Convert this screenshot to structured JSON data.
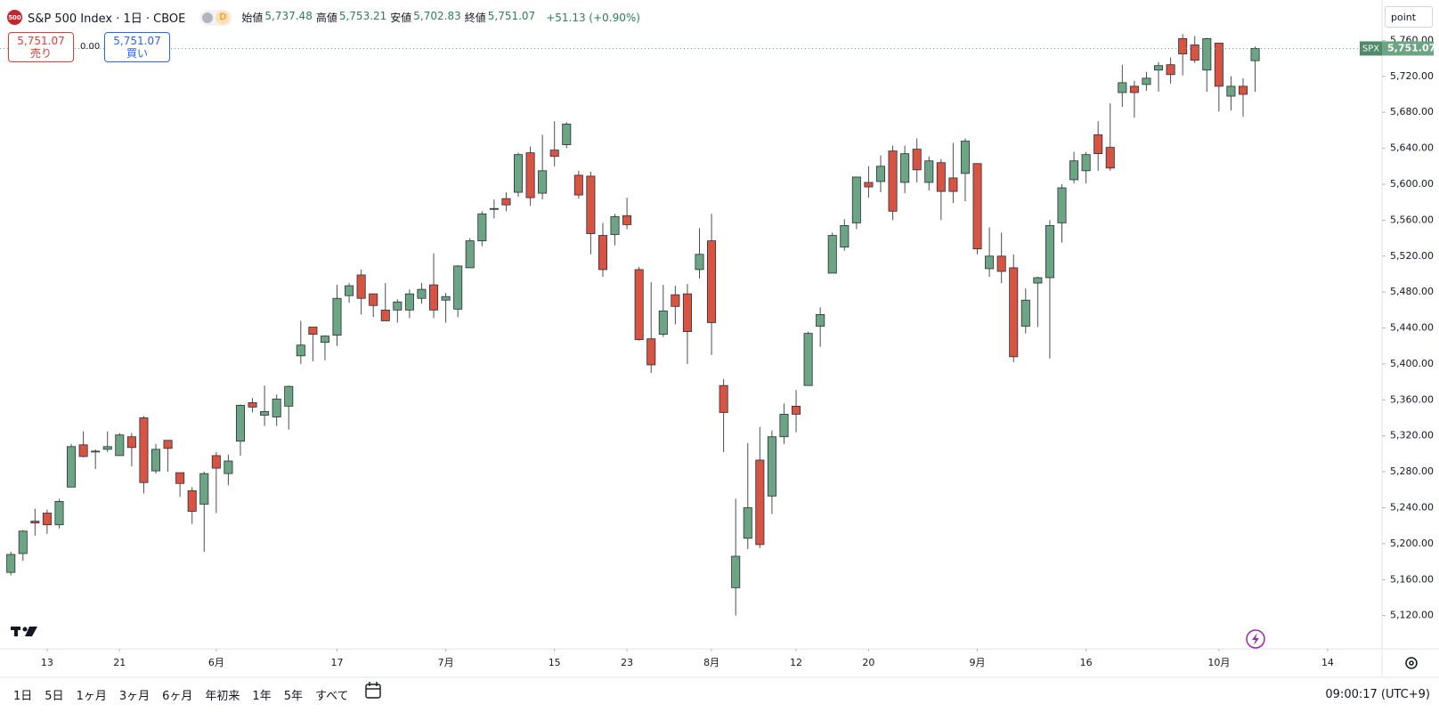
{
  "header": {
    "badge": "500",
    "title": "S&P 500 Index · 1日 · CBOE",
    "interval_badge": "D",
    "ohlc": [
      {
        "label": "始値",
        "value": "5,737.48"
      },
      {
        "label": "高値",
        "value": "5,753.21"
      },
      {
        "label": "安値",
        "value": "5,702.83"
      },
      {
        "label": "終値",
        "value": "5,751.07"
      }
    ],
    "change": "+51.13 (+0.90%)"
  },
  "trade": {
    "sell_price": "5,751.07",
    "sell_label": "売り",
    "spread": "0.00",
    "buy_price": "5,751.07",
    "buy_label": "買い"
  },
  "unit_button": "point",
  "price_tag": {
    "symbol": "SPX",
    "price": "5,751.07"
  },
  "toolbar": {
    "ranges": [
      "1日",
      "5日",
      "1ヶ月",
      "3ヶ月",
      "6ヶ月",
      "年初来",
      "1年",
      "5年",
      "すべて"
    ],
    "time": "09:00:17 (UTC+9)"
  },
  "chart_data": {
    "type": "candlestick",
    "open": [
      5168,
      5189,
      5225,
      5234,
      5221,
      5263,
      5310,
      5303,
      5305,
      5298,
      5319,
      5340,
      5281,
      5315,
      5279,
      5259,
      5244,
      5298,
      5278,
      5314,
      5357,
      5343,
      5341,
      5353,
      5409,
      5441,
      5424,
      5432,
      5476,
      5499,
      5478,
      5460,
      5460,
      5460,
      5473,
      5488,
      5471,
      5461,
      5507,
      5537,
      5572,
      5584,
      5591,
      5635,
      5590,
      5638,
      5644,
      5610,
      5609,
      5543,
      5544,
      5565,
      5505,
      5428,
      5433,
      5477,
      5478,
      5505,
      5537,
      5376,
      5151,
      5206,
      5293,
      5253,
      5319,
      5353,
      5376,
      5442,
      5501,
      5530,
      5557,
      5602,
      5603,
      5637,
      5602,
      5639,
      5602,
      5624,
      5607,
      5612,
      5623,
      5506,
      5520,
      5507,
      5442,
      5490,
      5496,
      5557,
      5605,
      5615,
      5655,
      5641,
      5702,
      5709,
      5711,
      5727,
      5733,
      5762,
      5755,
      5727,
      5757,
      5698,
      5709,
      5737.48
    ],
    "high": [
      5191,
      5215,
      5239,
      5238,
      5250,
      5311,
      5325,
      5305,
      5325,
      5323,
      5323,
      5342,
      5311,
      5315,
      5279,
      5263,
      5280,
      5302,
      5299,
      5355,
      5362,
      5376,
      5366,
      5376,
      5448,
      5441,
      5432,
      5488,
      5490,
      5505,
      5478,
      5490,
      5472,
      5483,
      5490,
      5523,
      5479,
      5510,
      5540,
      5570,
      5583,
      5591,
      5635,
      5642,
      5655,
      5670,
      5669,
      5615,
      5614,
      5557,
      5567,
      5585,
      5508,
      5491,
      5488,
      5487,
      5489,
      5551,
      5567,
      5383,
      5250,
      5312,
      5330,
      5326,
      5356,
      5371,
      5436,
      5463,
      5546,
      5561,
      5608,
      5620,
      5632,
      5643,
      5643,
      5651,
      5631,
      5628,
      5646,
      5651,
      5623,
      5552,
      5546,
      5522,
      5484,
      5497,
      5560,
      5600,
      5636,
      5636,
      5670,
      5690,
      5733,
      5715,
      5725,
      5736,
      5741,
      5767,
      5765,
      5763,
      5757,
      5720,
      5718,
      5753.21
    ],
    "low": [
      5165,
      5181,
      5209,
      5211,
      5217,
      5263,
      5296,
      5283,
      5302,
      5298,
      5286,
      5256,
      5278,
      5280,
      5252,
      5222,
      5191,
      5234,
      5265,
      5298,
      5346,
      5331,
      5331,
      5327,
      5400,
      5403,
      5404,
      5420,
      5468,
      5455,
      5452,
      5448,
      5446,
      5451,
      5467,
      5451,
      5446,
      5452,
      5507,
      5531,
      5562,
      5570,
      5586,
      5576,
      5583,
      5620,
      5640,
      5584,
      5522,
      5497,
      5532,
      5550,
      5426,
      5390,
      5430,
      5444,
      5400,
      5495,
      5410,
      5302,
      5120,
      5194,
      5195,
      5233,
      5311,
      5324,
      5376,
      5419,
      5501,
      5526,
      5550,
      5585,
      5591,
      5560,
      5590,
      5602,
      5593,
      5560,
      5579,
      5581,
      5522,
      5497,
      5490,
      5402,
      5434,
      5441,
      5406,
      5535,
      5601,
      5601,
      5615,
      5615,
      5686,
      5674,
      5704,
      5703,
      5712,
      5721,
      5735,
      5703,
      5681,
      5682,
      5675,
      5702.83
    ],
    "close": [
      5188,
      5214,
      5223,
      5221,
      5247,
      5308,
      5297,
      5303,
      5308,
      5321,
      5307,
      5268,
      5305,
      5306,
      5267,
      5236,
      5278,
      5284,
      5292,
      5354,
      5352,
      5347,
      5361,
      5375,
      5421,
      5433,
      5431,
      5473,
      5487,
      5473,
      5465,
      5448,
      5469,
      5478,
      5483,
      5460,
      5475,
      5509,
      5537,
      5567,
      5573,
      5577,
      5633,
      5585,
      5615,
      5631,
      5667,
      5588,
      5545,
      5505,
      5564,
      5555,
      5427,
      5399,
      5459,
      5464,
      5436,
      5522,
      5446,
      5346,
      5186,
      5240,
      5199,
      5319,
      5344,
      5344,
      5434,
      5455,
      5543,
      5554,
      5608,
      5597,
      5620,
      5570,
      5634,
      5616,
      5626,
      5592,
      5592,
      5648,
      5528,
      5520,
      5503,
      5408,
      5471,
      5496,
      5554,
      5596,
      5626,
      5633,
      5634,
      5618,
      5713,
      5702,
      5718,
      5732,
      5722,
      5745,
      5738,
      5762,
      5709,
      5709,
      5700,
      5751.07
    ],
    "up_color": "#6ba583",
    "down_color": "#d75442",
    "border_color": "#2a2e39",
    "wick_color": "#4a4e59",
    "xlim": [
      -0.9,
      113.5
    ],
    "xticks": [
      {
        "value": 3,
        "label": "13"
      },
      {
        "value": 9,
        "label": "21"
      },
      {
        "value": 17,
        "label": "6月"
      },
      {
        "value": 27,
        "label": "17"
      },
      {
        "value": 36,
        "label": "7月"
      },
      {
        "value": 45,
        "label": "15"
      },
      {
        "value": 51,
        "label": "23"
      },
      {
        "value": 58,
        "label": "8月"
      },
      {
        "value": 65,
        "label": "12"
      },
      {
        "value": 71,
        "label": "20"
      },
      {
        "value": 80,
        "label": "9月"
      },
      {
        "value": 89,
        "label": "16"
      },
      {
        "value": 100,
        "label": "10月"
      },
      {
        "value": 109,
        "label": "14"
      }
    ],
    "ylim": [
      5083,
      5805
    ],
    "yticks": [
      {
        "value": 5120,
        "label": "5,120.00"
      },
      {
        "value": 5160,
        "label": "5,160.00"
      },
      {
        "value": 5200,
        "label": "5,200.00"
      },
      {
        "value": 5240,
        "label": "5,240.00"
      },
      {
        "value": 5280,
        "label": "5,280.00"
      },
      {
        "value": 5320,
        "label": "5,320.00"
      },
      {
        "value": 5360,
        "label": "5,360.00"
      },
      {
        "value": 5400,
        "label": "5,400.00"
      },
      {
        "value": 5440,
        "label": "5,440.00"
      },
      {
        "value": 5480,
        "label": "5,480.00"
      },
      {
        "value": 5520,
        "label": "5,520.00"
      },
      {
        "value": 5560,
        "label": "5,560.00"
      },
      {
        "value": 5600,
        "label": "5,600.00"
      },
      {
        "value": 5640,
        "label": "5,640.00"
      },
      {
        "value": 5680,
        "label": "5,680.00"
      },
      {
        "value": 5720,
        "label": "5,720.00"
      },
      {
        "value": 5760,
        "label": "5,760.00"
      }
    ],
    "grid": false
  }
}
